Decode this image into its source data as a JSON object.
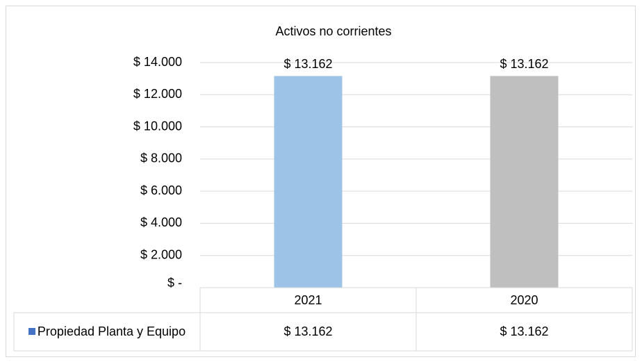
{
  "chart_data": {
    "type": "bar",
    "title": "Activos no corrientes",
    "categories": [
      "2021",
      "2020"
    ],
    "series": [
      {
        "name": "Propiedad Planta y Equipo",
        "color": "#4472c4",
        "point_colors": [
          "#9dc3e6",
          "#bfbfbf"
        ],
        "values": [
          13162,
          13162
        ],
        "value_labels": [
          "$ 13.162",
          "$ 13.162"
        ]
      }
    ],
    "ylim": [
      0,
      14000
    ],
    "yticks": [
      {
        "value": 0,
        "label": "$ -"
      },
      {
        "value": 2000,
        "label": "$ 2.000"
      },
      {
        "value": 4000,
        "label": "$ 4.000"
      },
      {
        "value": 6000,
        "label": "$ 6.000"
      },
      {
        "value": 8000,
        "label": "$ 8.000"
      },
      {
        "value": 10000,
        "label": "$ 10.000"
      },
      {
        "value": 12000,
        "label": "$ 12.000"
      },
      {
        "value": 14000,
        "label": "$ 14.000"
      }
    ],
    "grid": true,
    "data_table": true
  }
}
